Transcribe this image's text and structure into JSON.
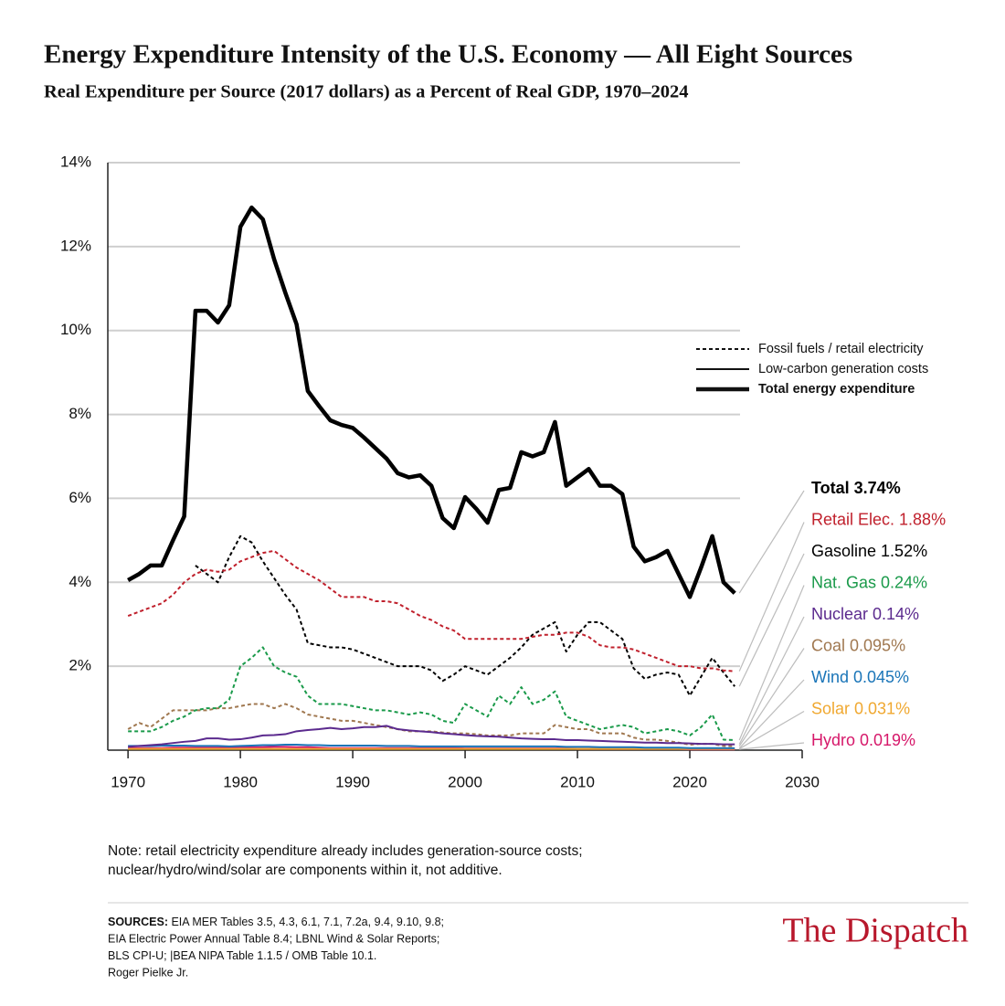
{
  "chart_data": {
    "type": "line",
    "title": "Energy Expenditure Intensity of the U.S. Economy — All Eight Sources",
    "subtitle": "Real Expenditure per Source (2017 dollars) as a Percent of Real GDP, 1970–2024",
    "x": [
      1970,
      1971,
      1972,
      1973,
      1974,
      1975,
      1976,
      1977,
      1978,
      1979,
      1980,
      1981,
      1982,
      1983,
      1984,
      1985,
      1986,
      1987,
      1988,
      1989,
      1990,
      1991,
      1992,
      1993,
      1994,
      1995,
      1996,
      1997,
      1998,
      1999,
      2000,
      2001,
      2002,
      2003,
      2004,
      2005,
      2006,
      2007,
      2008,
      2009,
      2010,
      2011,
      2012,
      2013,
      2014,
      2015,
      2016,
      2017,
      2018,
      2019,
      2020,
      2021,
      2022,
      2023,
      2024
    ],
    "xlim": [
      1968.2,
      2030
    ],
    "xticks": [
      1970,
      1980,
      1990,
      2000,
      2010,
      2020,
      2030
    ],
    "ylim": [
      0,
      14
    ],
    "yticks": [
      {
        "value": 2,
        "label": "2%"
      },
      {
        "value": 4,
        "label": "4%"
      },
      {
        "value": 6,
        "label": "6%"
      },
      {
        "value": 8,
        "label": "8%"
      },
      {
        "value": 10,
        "label": "10%"
      },
      {
        "value": 12,
        "label": "12%"
      },
      {
        "value": 14,
        "label": "14%"
      }
    ],
    "grid": true,
    "legend": [
      {
        "label": "Fossil fuels / retail electricity",
        "dash": "dotted",
        "width": 2
      },
      {
        "label": "Low-carbon generation costs",
        "dash": "solid",
        "width": 2
      },
      {
        "label": "Total energy expenditure",
        "dash": "solid",
        "width": 4.5
      }
    ],
    "series": [
      {
        "label": "Total 3.74%",
        "color": "#000000",
        "dash": "solid",
        "width": 4.5,
        "values": [
          4.05,
          4.2,
          4.4,
          4.4,
          5.0,
          5.57,
          10.47,
          10.47,
          10.19,
          10.6,
          12.47,
          12.93,
          12.65,
          11.7,
          10.9,
          10.15,
          8.56,
          8.2,
          7.86,
          7.75,
          7.68,
          7.45,
          7.2,
          6.95,
          6.6,
          6.5,
          6.55,
          6.3,
          5.53,
          5.29,
          6.03,
          5.75,
          5.42,
          6.2,
          6.25,
          7.1,
          7.0,
          7.1,
          7.82,
          6.3,
          6.5,
          6.7,
          6.3,
          6.3,
          6.1,
          4.85,
          4.5,
          4.6,
          4.75,
          4.2,
          3.65,
          4.35,
          5.1,
          4.0,
          3.74
        ]
      },
      {
        "label": "Retail Elec. 1.88%",
        "color": "#c0202c",
        "dash": "dotted",
        "width": 2,
        "values": [
          3.2,
          3.3,
          3.4,
          3.5,
          3.7,
          4.0,
          4.2,
          4.3,
          4.25,
          4.3,
          4.5,
          4.6,
          4.7,
          4.75,
          4.55,
          4.35,
          4.2,
          4.05,
          3.85,
          3.65,
          3.65,
          3.65,
          3.55,
          3.55,
          3.5,
          3.35,
          3.2,
          3.1,
          2.95,
          2.85,
          2.65,
          2.65,
          2.65,
          2.65,
          2.65,
          2.65,
          2.7,
          2.75,
          2.75,
          2.8,
          2.8,
          2.7,
          2.5,
          2.45,
          2.45,
          2.4,
          2.3,
          2.2,
          2.1,
          2.0,
          2.0,
          1.95,
          1.95,
          1.9,
          1.88
        ]
      },
      {
        "label": "Gasoline 1.52%",
        "color": "#000000",
        "dash": "dotted",
        "width": 2,
        "values": [
          null,
          null,
          null,
          null,
          null,
          null,
          4.4,
          4.2,
          4.0,
          4.6,
          5.1,
          4.95,
          4.5,
          4.1,
          3.7,
          3.35,
          2.55,
          2.5,
          2.45,
          2.45,
          2.4,
          2.3,
          2.2,
          2.1,
          2.0,
          2.0,
          2.0,
          1.9,
          1.65,
          1.8,
          2.0,
          1.9,
          1.8,
          2.0,
          2.2,
          2.45,
          2.75,
          2.9,
          3.05,
          2.35,
          2.75,
          3.05,
          3.05,
          2.85,
          2.65,
          1.95,
          1.7,
          1.8,
          1.85,
          1.8,
          1.3,
          1.75,
          2.2,
          1.85,
          1.52
        ]
      },
      {
        "label": "Nat. Gas 0.24%",
        "color": "#1a9a4a",
        "dash": "dotted",
        "width": 2,
        "values": [
          0.45,
          0.45,
          0.45,
          0.55,
          0.7,
          0.8,
          0.95,
          1.0,
          1.0,
          1.2,
          2.0,
          2.2,
          2.45,
          2.0,
          1.85,
          1.75,
          1.3,
          1.1,
          1.1,
          1.1,
          1.05,
          1.0,
          0.95,
          0.95,
          0.9,
          0.85,
          0.9,
          0.85,
          0.7,
          0.65,
          1.1,
          0.95,
          0.8,
          1.3,
          1.1,
          1.5,
          1.1,
          1.2,
          1.4,
          0.8,
          0.7,
          0.6,
          0.5,
          0.55,
          0.6,
          0.55,
          0.4,
          0.45,
          0.5,
          0.45,
          0.35,
          0.55,
          0.85,
          0.25,
          0.24
        ]
      },
      {
        "label": "Nuclear 0.14%",
        "color": "#5b2a8e",
        "dash": "solid",
        "width": 2,
        "values": [
          0.08,
          0.1,
          0.12,
          0.14,
          0.17,
          0.2,
          0.22,
          0.28,
          0.28,
          0.25,
          0.26,
          0.3,
          0.35,
          0.36,
          0.38,
          0.45,
          0.48,
          0.5,
          0.53,
          0.5,
          0.52,
          0.55,
          0.55,
          0.58,
          0.5,
          0.47,
          0.45,
          0.43,
          0.4,
          0.38,
          0.36,
          0.34,
          0.33,
          0.32,
          0.3,
          0.28,
          0.27,
          0.26,
          0.26,
          0.24,
          0.24,
          0.23,
          0.22,
          0.21,
          0.2,
          0.19,
          0.18,
          0.18,
          0.17,
          0.17,
          0.16,
          0.15,
          0.15,
          0.14,
          0.14
        ]
      },
      {
        "label": "Coal 0.095%",
        "color": "#a07850",
        "dash": "dotted",
        "width": 2,
        "values": [
          0.5,
          0.65,
          0.55,
          0.75,
          0.95,
          0.95,
          0.95,
          0.95,
          1.0,
          1.0,
          1.05,
          1.1,
          1.1,
          1.0,
          1.1,
          1.0,
          0.85,
          0.8,
          0.75,
          0.7,
          0.7,
          0.65,
          0.6,
          0.55,
          0.5,
          0.45,
          0.45,
          0.45,
          0.42,
          0.4,
          0.4,
          0.38,
          0.35,
          0.35,
          0.35,
          0.4,
          0.4,
          0.4,
          0.6,
          0.55,
          0.5,
          0.5,
          0.4,
          0.4,
          0.4,
          0.3,
          0.25,
          0.25,
          0.22,
          0.18,
          0.13,
          0.15,
          0.15,
          0.1,
          0.095
        ]
      },
      {
        "label": "Wind 0.045%",
        "color": "#1a75b8",
        "dash": "solid",
        "width": 2,
        "values": [
          0.1,
          0.1,
          0.1,
          0.11,
          0.11,
          0.11,
          0.1,
          0.1,
          0.1,
          0.09,
          0.1,
          0.11,
          0.12,
          0.12,
          0.13,
          0.13,
          0.12,
          0.12,
          0.11,
          0.11,
          0.11,
          0.11,
          0.11,
          0.1,
          0.1,
          0.1,
          0.09,
          0.09,
          0.09,
          0.09,
          0.09,
          0.09,
          0.09,
          0.09,
          0.09,
          0.09,
          0.09,
          0.09,
          0.09,
          0.08,
          0.08,
          0.08,
          0.07,
          0.07,
          0.07,
          0.07,
          0.06,
          0.06,
          0.06,
          0.06,
          0.05,
          0.05,
          0.05,
          0.05,
          0.045
        ]
      },
      {
        "label": "Solar 0.031%",
        "color": "#f0a830",
        "dash": "solid",
        "width": 2,
        "values": [
          0.03,
          0.03,
          0.03,
          0.03,
          0.03,
          0.03,
          0.03,
          0.03,
          0.03,
          0.03,
          0.03,
          0.03,
          0.03,
          0.03,
          0.03,
          0.03,
          0.03,
          0.03,
          0.03,
          0.03,
          0.03,
          0.03,
          0.03,
          0.03,
          0.03,
          0.03,
          0.03,
          0.03,
          0.03,
          0.03,
          0.03,
          0.03,
          0.03,
          0.03,
          0.03,
          0.03,
          0.03,
          0.03,
          0.03,
          0.03,
          0.03,
          0.03,
          0.03,
          0.03,
          0.03,
          0.03,
          0.03,
          0.03,
          0.03,
          0.03,
          0.03,
          0.03,
          0.03,
          0.03,
          0.031
        ]
      },
      {
        "label": "Hydro 0.019%",
        "color": "#d6186a",
        "dash": "solid",
        "width": 2,
        "values": [
          0.05,
          0.05,
          0.05,
          0.05,
          0.06,
          0.06,
          0.06,
          0.06,
          0.06,
          0.06,
          0.07,
          0.07,
          0.07,
          0.08,
          0.08,
          0.07,
          0.07,
          0.06,
          0.05,
          0.05,
          0.05,
          0.05,
          0.05,
          0.05,
          0.05,
          0.05,
          0.05,
          0.05,
          0.05,
          0.05,
          0.04,
          0.04,
          0.04,
          0.04,
          0.04,
          0.04,
          0.04,
          0.04,
          0.04,
          0.04,
          0.03,
          0.03,
          0.03,
          0.03,
          0.03,
          0.03,
          0.03,
          0.03,
          0.03,
          0.03,
          0.02,
          0.02,
          0.02,
          0.02,
          0.019
        ]
      }
    ],
    "note": [
      "Note: retail electricity expenditure already includes generation-source costs;",
      "nuclear/hydro/wind/solar are components within it, not additive."
    ],
    "sources_heading": "SOURCES:",
    "sources": [
      " EIA MER Tables 3.5, 4.3, 6.1, 7.1, 7.2a, 9.4, 9.10, 9.8;",
      "EIA Electric Power Annual Table 8.4; LBNL Wind & Solar Reports;",
      "BLS CPI-U; |BEA NIPA Table 1.1.5 / OMB Table 10.1.",
      "Roger Pielke Jr."
    ],
    "logo": "The Dispatch"
  }
}
